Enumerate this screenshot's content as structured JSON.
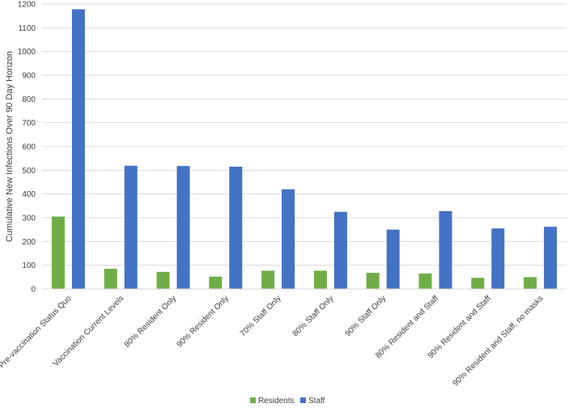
{
  "chart_data": {
    "type": "bar",
    "title": "",
    "xlabel": "",
    "ylabel": "Cumulative New Infections Over 90 Day Horizon",
    "ylim": [
      0,
      1200
    ],
    "yticks": [
      0,
      100,
      200,
      300,
      400,
      500,
      600,
      700,
      800,
      900,
      1000,
      1100,
      1200
    ],
    "grid": true,
    "legend_position": "bottom",
    "categories": [
      "Pre-vaccination Status Quo",
      "Vaccination Current Levels",
      "80% Resident Only",
      "90% Resident Only",
      "70% Staff Only",
      "80% Staff Only",
      "90% Staff Only",
      "80% Resident and Staff",
      "90% Resident and Staff",
      "90% Resident and Staff, no masks"
    ],
    "series": [
      {
        "name": "Residents",
        "color": "#70ad47",
        "values": [
          305,
          85,
          72,
          52,
          77,
          77,
          68,
          65,
          47,
          50
        ]
      },
      {
        "name": "Staff",
        "color": "#4472c4",
        "values": [
          1178,
          519,
          518,
          515,
          420,
          325,
          250,
          328,
          255,
          262
        ]
      }
    ]
  }
}
